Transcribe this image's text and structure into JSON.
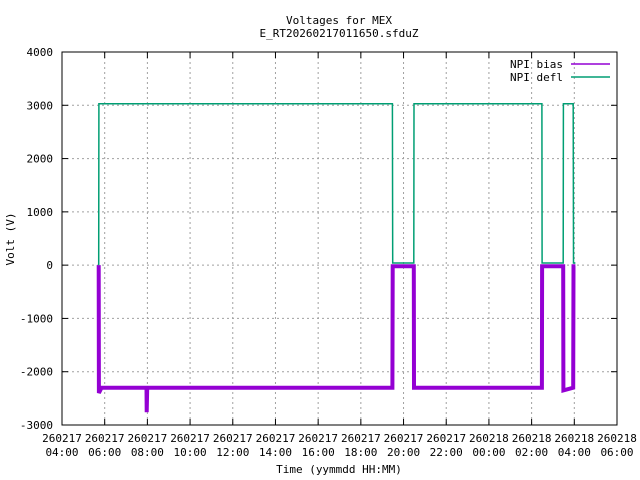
{
  "chart_data": {
    "type": "line",
    "title": "Voltages for MEX",
    "subtitle": "E_RT20260217011650.sfduZ",
    "xlabel": "Time (yymmdd HH:MM)",
    "ylabel": "Volt (V)",
    "ylim": [
      -3000,
      4000
    ],
    "xlim_hours": [
      4,
      30
    ],
    "grid": true,
    "legend_position": "top-right",
    "yticks": [
      -3000,
      -2000,
      -1000,
      0,
      1000,
      2000,
      3000,
      4000
    ],
    "xticks": [
      {
        "h": 4,
        "date": "260217",
        "time": "04:00"
      },
      {
        "h": 6,
        "date": "260217",
        "time": "06:00"
      },
      {
        "h": 8,
        "date": "260217",
        "time": "08:00"
      },
      {
        "h": 10,
        "date": "260217",
        "time": "10:00"
      },
      {
        "h": 12,
        "date": "260217",
        "time": "12:00"
      },
      {
        "h": 14,
        "date": "260217",
        "time": "14:00"
      },
      {
        "h": 16,
        "date": "260217",
        "time": "16:00"
      },
      {
        "h": 18,
        "date": "260217",
        "time": "18:00"
      },
      {
        "h": 20,
        "date": "260217",
        "time": "20:00"
      },
      {
        "h": 22,
        "date": "260217",
        "time": "22:00"
      },
      {
        "h": 24,
        "date": "260218",
        "time": "00:00"
      },
      {
        "h": 26,
        "date": "260218",
        "time": "02:00"
      },
      {
        "h": 28,
        "date": "260218",
        "time": "04:00"
      },
      {
        "h": 30,
        "date": "260218",
        "time": "06:00"
      }
    ],
    "series": [
      {
        "name": "NPI bias",
        "color": "#9400d3",
        "points": [
          [
            5.72,
            0
          ],
          [
            5.73,
            -2400
          ],
          [
            5.85,
            -2300
          ],
          [
            7.96,
            -2300
          ],
          [
            7.97,
            -2760
          ],
          [
            7.99,
            -2300
          ],
          [
            19.48,
            -2300
          ],
          [
            19.49,
            -20
          ],
          [
            20.48,
            -20
          ],
          [
            20.49,
            -2300
          ],
          [
            26.48,
            -2300
          ],
          [
            26.49,
            -20
          ],
          [
            27.48,
            -20
          ],
          [
            27.49,
            -2350
          ],
          [
            27.95,
            -2300
          ],
          [
            27.96,
            -20
          ],
          [
            28.05,
            -20
          ]
        ]
      },
      {
        "name": "NPI defl",
        "color": "#009e73",
        "points": [
          [
            5.72,
            0
          ],
          [
            5.73,
            3030
          ],
          [
            19.48,
            3030
          ],
          [
            19.49,
            40
          ],
          [
            20.48,
            40
          ],
          [
            20.49,
            3030
          ],
          [
            26.48,
            3030
          ],
          [
            26.49,
            40
          ],
          [
            27.48,
            40
          ],
          [
            27.49,
            3030
          ],
          [
            27.95,
            3030
          ],
          [
            27.96,
            40
          ],
          [
            28.05,
            40
          ]
        ]
      }
    ]
  }
}
